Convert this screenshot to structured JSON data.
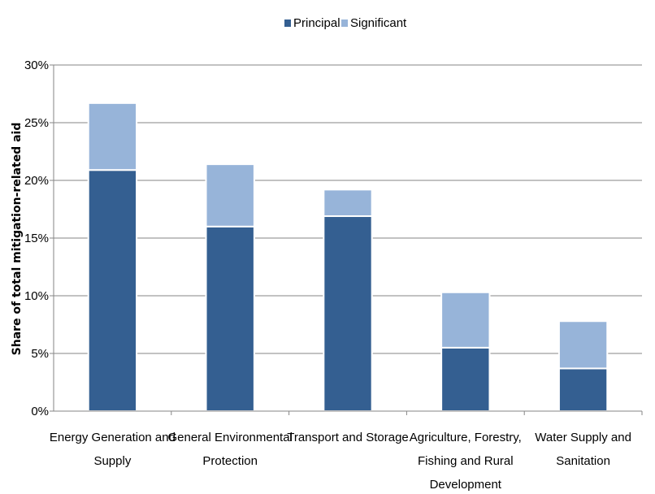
{
  "chart_data": {
    "type": "bar",
    "stacked": true,
    "title": "",
    "xlabel": "",
    "ylabel": "Share of total mitigation-related aid",
    "ylim": [
      0,
      30
    ],
    "yticks": [
      "0%",
      "5%",
      "10%",
      "15%",
      "20%",
      "25%",
      "30%"
    ],
    "grid": true,
    "legend_position": "top",
    "categories": [
      [
        "Energy Generation and",
        "Supply"
      ],
      [
        "General Environmental",
        "Protection"
      ],
      [
        "Transport and Storage"
      ],
      [
        "Agriculture, Forestry,",
        "Fishing and Rural",
        "Development"
      ],
      [
        "Water Supply and",
        "Sanitation"
      ]
    ],
    "series": [
      {
        "name": "Principal",
        "color": "#345f91",
        "values": [
          20.9,
          16.0,
          16.9,
          5.5,
          3.7
        ]
      },
      {
        "name": "Significant",
        "color": "#97b4d9",
        "values": [
          5.8,
          5.4,
          2.3,
          4.8,
          4.1
        ]
      }
    ]
  }
}
